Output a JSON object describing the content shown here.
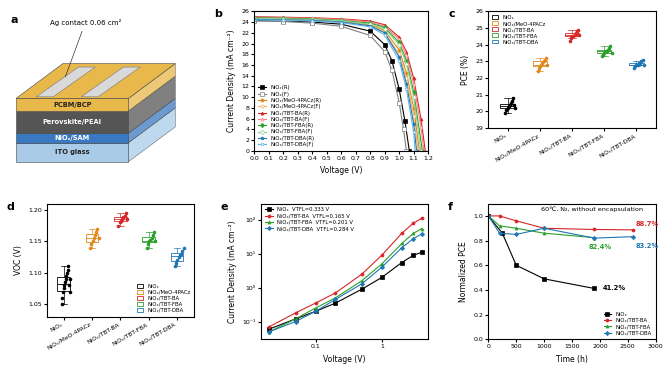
{
  "schematic": {
    "panel": "a",
    "contact": "Ag contact 0.06 cm²",
    "layers": [
      {
        "name": "ITO glass",
        "color": "#a9cbe8"
      },
      {
        "name": "NiOₓ/SAM",
        "color": "#3a78c2"
      },
      {
        "name": "Perovskite/PEAI",
        "color": "#555555"
      },
      {
        "name": "PCBM/BCP",
        "color": "#e8b84a"
      }
    ]
  },
  "chart_data": [
    {
      "panel": "b",
      "type": "line",
      "xlabel": "Voltage (V)",
      "ylabel": "Current Density (mA cm⁻²)",
      "xlim": [
        0,
        1.2
      ],
      "ylim": [
        0,
        26
      ],
      "xticks": [
        {
          "value": 0,
          "label": "0.0"
        },
        0.1,
        0.2,
        0.3,
        0.4,
        0.5,
        0.6,
        0.7,
        0.8,
        0.9,
        {
          "value": 1,
          "label": "1.0"
        },
        1.1,
        1.2
      ],
      "yticks": [
        0,
        2,
        4,
        6,
        8,
        10,
        12,
        14,
        16,
        18,
        20,
        22,
        24,
        26
      ],
      "legend": "lower left",
      "series": [
        {
          "name": "NiOₓ(R)",
          "color": "#000000",
          "marker": "square",
          "x": [
            0,
            0.2,
            0.4,
            0.6,
            0.8,
            0.9,
            0.95,
            1.0,
            1.04,
            1.07
          ],
          "values": [
            24.3,
            24.2,
            24.0,
            23.6,
            22.3,
            19.8,
            16.8,
            11.5,
            5.5,
            0
          ]
        },
        {
          "name": "NiOₓ(F)",
          "color": "#808080",
          "marker": "square",
          "x": [
            0,
            0.2,
            0.4,
            0.6,
            0.8,
            0.9,
            0.95,
            1.0,
            1.03,
            1.05
          ],
          "values": [
            24.2,
            24.1,
            23.8,
            23.2,
            21.5,
            18.5,
            15.0,
            9.0,
            4.0,
            0
          ]
        },
        {
          "name": "NiOₓ/MeO-4PACz(R)",
          "color": "#e08a1e",
          "marker": "circle",
          "x": [
            0,
            0.2,
            0.4,
            0.6,
            0.8,
            0.9,
            1.0,
            1.05,
            1.1,
            1.14
          ],
          "values": [
            24.6,
            24.5,
            24.4,
            24.1,
            23.5,
            22.4,
            18.8,
            14.5,
            8.0,
            0
          ]
        },
        {
          "name": "NiOₓ/MeO-4PACz(F)",
          "color": "#f0b060",
          "marker": "circle",
          "x": [
            0,
            0.2,
            0.4,
            0.6,
            0.8,
            0.9,
            1.0,
            1.05,
            1.1,
            1.13
          ],
          "values": [
            24.5,
            24.4,
            24.3,
            24.0,
            23.3,
            22.0,
            18.0,
            13.5,
            6.5,
            0
          ]
        },
        {
          "name": "NiOₓ/TBT-BA(R)",
          "color": "#d62728",
          "marker": "triangle",
          "x": [
            0,
            0.2,
            0.4,
            0.6,
            0.8,
            0.9,
            1.0,
            1.05,
            1.1,
            1.15,
            1.18
          ],
          "values": [
            25.0,
            24.9,
            24.8,
            24.6,
            24.2,
            23.5,
            21.2,
            18.5,
            13.5,
            6.0,
            0
          ]
        },
        {
          "name": "NiOₓ/TBT-BA(F)",
          "color": "#ff8080",
          "marker": "triangle",
          "x": [
            0,
            0.2,
            0.4,
            0.6,
            0.8,
            0.9,
            1.0,
            1.05,
            1.1,
            1.15,
            1.17
          ],
          "values": [
            24.9,
            24.8,
            24.7,
            24.5,
            24.0,
            23.2,
            20.8,
            17.8,
            12.5,
            4.5,
            0
          ]
        },
        {
          "name": "NiOₓ/TBT-FBA(R)",
          "color": "#2ca02c",
          "marker": "diamond",
          "x": [
            0,
            0.2,
            0.4,
            0.6,
            0.8,
            0.9,
            1.0,
            1.05,
            1.1,
            1.16
          ],
          "values": [
            24.8,
            24.7,
            24.6,
            24.3,
            23.8,
            23.0,
            20.2,
            16.8,
            11.0,
            0
          ]
        },
        {
          "name": "NiOₓ/TBT-FBA(F)",
          "color": "#8fd18f",
          "marker": "diamond",
          "x": [
            0,
            0.2,
            0.4,
            0.6,
            0.8,
            0.9,
            1.0,
            1.05,
            1.1,
            1.15
          ],
          "values": [
            24.7,
            24.6,
            24.5,
            24.2,
            23.6,
            22.7,
            19.8,
            16.2,
            10.0,
            0
          ]
        },
        {
          "name": "NiOₓ/TBT-DBA(R)",
          "color": "#1f77b4",
          "marker": "pentagon",
          "x": [
            0,
            0.2,
            0.4,
            0.6,
            0.8,
            0.9,
            1.0,
            1.05,
            1.1,
            1.12
          ],
          "values": [
            24.5,
            24.4,
            24.3,
            24.0,
            23.3,
            22.0,
            17.5,
            12.5,
            5.0,
            0
          ]
        },
        {
          "name": "NiOₓ/TBT-DBA(F)",
          "color": "#66b3e6",
          "marker": "pentagon",
          "x": [
            0,
            0.2,
            0.4,
            0.6,
            0.8,
            0.9,
            1.0,
            1.05,
            1.1,
            1.11
          ],
          "values": [
            24.4,
            24.3,
            24.2,
            23.9,
            23.1,
            21.6,
            16.8,
            11.5,
            3.5,
            0
          ]
        }
      ]
    },
    {
      "panel": "c",
      "type": "box",
      "ylabel": "PCE (%)",
      "ylim": [
        19,
        26
      ],
      "yticks": [
        19,
        20,
        21,
        22,
        23,
        24,
        25,
        26
      ],
      "legend": "upper left",
      "categories": [
        "NiOₓ",
        "NiOₓ/MeO-4PACz",
        "NiOₓ/TBT-BA",
        "NiOₓ/TBT-FBA",
        "NiOₓ/TBT-DBA"
      ],
      "colors": [
        "#000000",
        "#e08a1e",
        "#d62728",
        "#2ca02c",
        "#1f77b4"
      ],
      "values": [
        [
          19.9,
          20.1,
          20.2,
          20.3,
          20.4,
          20.5,
          20.6,
          20.8,
          20.4,
          20.2
        ],
        [
          22.4,
          22.6,
          22.7,
          22.8,
          22.9,
          23.0,
          23.1,
          23.2,
          22.8
        ],
        [
          24.2,
          24.4,
          24.5,
          24.5,
          24.6,
          24.7,
          24.8,
          24.9,
          24.6
        ],
        [
          23.3,
          23.4,
          23.5,
          23.6,
          23.6,
          23.7,
          23.8,
          23.9,
          23.5
        ],
        [
          22.6,
          22.7,
          22.8,
          22.8,
          22.9,
          22.9,
          23.0,
          23.1,
          22.8
        ]
      ]
    },
    {
      "panel": "d",
      "type": "box",
      "ylabel": "VOC (V)",
      "ylim": [
        1.03,
        1.21
      ],
      "yticks": [
        {
          "value": 1.05,
          "label": "1.05"
        },
        {
          "value": 1.1,
          "label": "1.10"
        },
        {
          "value": 1.15,
          "label": "1.15"
        },
        {
          "value": 1.2,
          "label": "1.20"
        }
      ],
      "legend": "lower right",
      "categories": [
        "NiOₓ",
        "NiOₓ/MeO-4PACz",
        "NiOₓ/TBT-BA",
        "NiOₓ/TBT-FBA",
        "NiOₓ/TBT-DBA"
      ],
      "colors": [
        "#000000",
        "#e08a1e",
        "#d62728",
        "#2ca02c",
        "#1f77b4"
      ],
      "values": [
        [
          1.05,
          1.06,
          1.07,
          1.075,
          1.08,
          1.085,
          1.09,
          1.095,
          1.1,
          1.105,
          1.11,
          1.08,
          1.07,
          1.09
        ],
        [
          1.14,
          1.145,
          1.15,
          1.155,
          1.16,
          1.165,
          1.17,
          1.155
        ],
        [
          1.175,
          1.18,
          1.182,
          1.185,
          1.188,
          1.19,
          1.195,
          1.186
        ],
        [
          1.14,
          1.145,
          1.15,
          1.152,
          1.155,
          1.16,
          1.165,
          1.15
        ],
        [
          1.11,
          1.115,
          1.12,
          1.125,
          1.128,
          1.13,
          1.135,
          1.14
        ]
      ]
    },
    {
      "panel": "e",
      "type": "line",
      "log": true,
      "xlabel": "Voltage (V)",
      "ylabel": "Current Density (mA cm⁻²)",
      "xlim": [
        0.015,
        5
      ],
      "ylim": [
        0.03,
        300
      ],
      "xticks": [
        0.1,
        1
      ],
      "yticks": [
        {
          "value": 0.1,
          "label": "10⁻¹"
        },
        {
          "value": 1,
          "label": "10⁰"
        },
        {
          "value": 10,
          "label": "10¹"
        },
        {
          "value": 100,
          "label": "10²"
        }
      ],
      "legend": "upper left",
      "x": [
        0.02,
        0.05,
        0.1,
        0.2,
        0.5,
        1,
        2,
        3,
        4
      ],
      "series": [
        {
          "name": "NiOₓ  VTFL=0.333 V",
          "color": "#000000",
          "marker": "square",
          "values": [
            0.06,
            0.12,
            0.2,
            0.35,
            0.9,
            2.0,
            5.5,
            9,
            11
          ]
        },
        {
          "name": "NiOₓ/TBT-BA  VTFL=0.165 V",
          "color": "#d62728",
          "marker": "circle",
          "values": [
            0.07,
            0.18,
            0.35,
            0.7,
            2.5,
            9,
            40,
            80,
            110
          ]
        },
        {
          "name": "NiOₓ/TBT-FBA  VTFL=0.201 V",
          "color": "#2ca02c",
          "marker": "triangle",
          "values": [
            0.05,
            0.12,
            0.25,
            0.5,
            1.6,
            5,
            20,
            40,
            55
          ]
        },
        {
          "name": "NiOₓ/TBT-DBA  VTFL=0.284 V",
          "color": "#1f77b4",
          "marker": "diamond",
          "values": [
            0.05,
            0.1,
            0.2,
            0.45,
            1.3,
            4,
            15,
            28,
            38
          ]
        }
      ]
    },
    {
      "panel": "f",
      "type": "line",
      "xlabel": "Time (h)",
      "ylabel": "Normalized PCE",
      "annotation": "60℃, N₂, without encapsulation",
      "xlim": [
        0,
        3000
      ],
      "ylim": [
        0,
        1.1
      ],
      "xticks": [
        0,
        500,
        1000,
        1500,
        2000,
        2500,
        3000
      ],
      "yticks": [
        {
          "value": 0,
          "label": "0.0"
        },
        0.2,
        0.4,
        0.6,
        0.8,
        {
          "value": 1,
          "label": "1.0"
        }
      ],
      "legend": "lower right",
      "series": [
        {
          "name": "NiOₓ",
          "color": "#000000",
          "marker": "square",
          "x": [
            0,
            250,
            500,
            1000,
            1900
          ],
          "values": [
            1.0,
            0.86,
            0.6,
            0.49,
            0.412
          ],
          "end_label": "41.2%"
        },
        {
          "name": "NiOₓ/TBT-BA",
          "color": "#d62728",
          "marker": "circle",
          "x": [
            0,
            200,
            500,
            1000,
            1900,
            2600
          ],
          "values": [
            1.0,
            1.0,
            0.96,
            0.9,
            0.89,
            0.887
          ],
          "end_label": "88.7%"
        },
        {
          "name": "NiOₓ/TBT-FBA",
          "color": "#2ca02c",
          "marker": "triangle",
          "x": [
            0,
            200,
            500,
            1000,
            1900
          ],
          "values": [
            1.0,
            0.92,
            0.9,
            0.86,
            0.824
          ],
          "end_label": "82.4%"
        },
        {
          "name": "NiOₓ/TBT-DBA",
          "color": "#1f77b4",
          "marker": "diamond",
          "x": [
            0,
            200,
            500,
            1000,
            1900,
            2600
          ],
          "values": [
            1.0,
            0.86,
            0.85,
            0.9,
            0.82,
            0.832
          ],
          "end_label": "83.2%"
        }
      ]
    }
  ]
}
